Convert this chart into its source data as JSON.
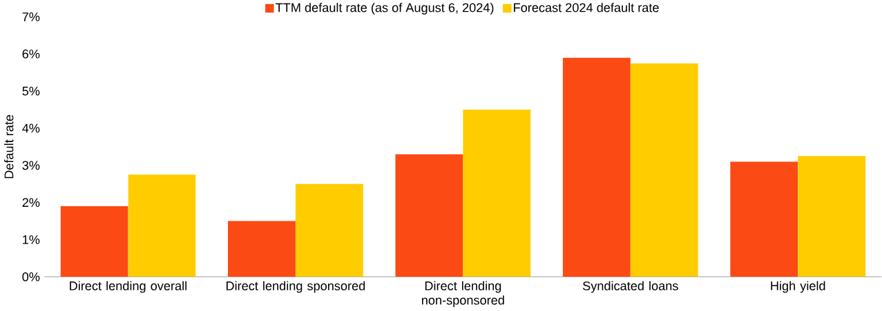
{
  "chart_data": {
    "type": "bar",
    "ylabel": "Default rate",
    "categories": [
      "Direct lending overall",
      "Direct lending sponsored",
      "Direct lending non-sponsored",
      "Syndicated loans",
      "High yield"
    ],
    "series": [
      {
        "name": "TTM default rate (as of August 6, 2024)",
        "color": "#fc4a14",
        "values": [
          1.9,
          1.5,
          3.3,
          5.9,
          3.1
        ]
      },
      {
        "name": "Forecast 2024 default rate",
        "color": "#ffcc00",
        "values": [
          2.75,
          2.5,
          4.5,
          5.75,
          3.25
        ]
      }
    ],
    "ylim": [
      0,
      7
    ],
    "yticks": [
      {
        "value": 0,
        "label": "0%"
      },
      {
        "value": 1,
        "label": "1%"
      },
      {
        "value": 2,
        "label": "2%"
      },
      {
        "value": 3,
        "label": "3%"
      },
      {
        "value": 4,
        "label": "4%"
      },
      {
        "value": 5,
        "label": "5%"
      },
      {
        "value": 6,
        "label": "6%"
      },
      {
        "value": 7,
        "label": "7%"
      }
    ],
    "grid": false,
    "legend": "top"
  }
}
